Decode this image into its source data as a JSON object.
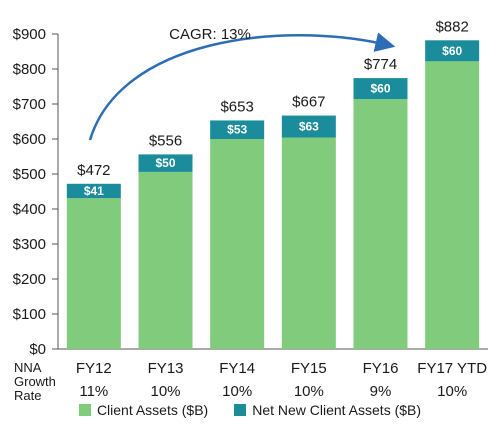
{
  "chart_data": {
    "type": "bar",
    "stacked": true,
    "categories": [
      "FY12",
      "FY13",
      "FY14",
      "FY15",
      "FY16",
      "FY17 YTD"
    ],
    "series": [
      {
        "name": "Client Assets ($B)",
        "values": [
          431,
          506,
          600,
          604,
          714,
          822
        ],
        "color": "#80cc7c"
      },
      {
        "name": "Net New Client Assets ($B)",
        "values": [
          41,
          50,
          53,
          63,
          60,
          60
        ],
        "color": "#1b8c9b"
      }
    ],
    "totals": [
      "$472",
      "$556",
      "$653",
      "$667",
      "$774",
      "$882"
    ],
    "segment_labels": [
      "$41",
      "$50",
      "$53",
      "$63",
      "$60",
      "$60"
    ],
    "y_ticks": [
      "$0",
      "$100",
      "$200",
      "$300",
      "$400",
      "$500",
      "$600",
      "$700",
      "$800",
      "$900"
    ],
    "ylim": [
      0,
      900
    ],
    "annotation": "CAGR: 13%",
    "growth_label": [
      "NNA",
      "Growth",
      "Rate"
    ],
    "growth_rates": [
      "11%",
      "10%",
      "10%",
      "10%",
      "9%",
      "10%"
    ],
    "legend_position": "bottom",
    "grid": false
  }
}
